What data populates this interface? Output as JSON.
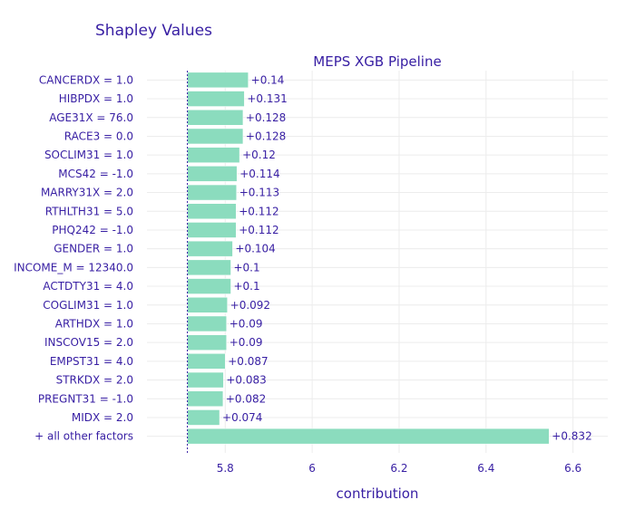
{
  "chart_data": {
    "type": "bar",
    "orientation": "horizontal",
    "title": "Shapley Values",
    "subtitle": "MEPS XGB Pipeline",
    "xlabel": "contribution",
    "baseline": 5.713,
    "xlim": [
      5.62,
      6.68
    ],
    "xticks": [
      5.8,
      6,
      6.2,
      6.4,
      6.6
    ],
    "xtick_labels": [
      "5.8",
      "6",
      "6.2",
      "6.4",
      "6.6"
    ],
    "bar_color": "#8bdcbe",
    "text_color": "#371ea3",
    "grid": true,
    "categories": [
      "CANCERDX = 1.0",
      "HIBPDX = 1.0",
      "AGE31X = 76.0",
      "RACE3 = 0.0",
      "SOCLIM31 = 1.0",
      "MCS42 = -1.0",
      "MARRY31X = 2.0",
      "RTHLTH31 = 5.0",
      "PHQ242 = -1.0",
      "GENDER = 1.0",
      "INCOME_M = 12340.0",
      "ACTDTY31 = 4.0",
      "COGLIM31 = 1.0",
      "ARTHDX = 1.0",
      "INSCOV15 = 2.0",
      "EMPST31 = 4.0",
      "STRKDX = 2.0",
      "PREGNT31 = -1.0",
      "MIDX = 2.0",
      "+ all other factors"
    ],
    "values": [
      0.14,
      0.131,
      0.128,
      0.128,
      0.12,
      0.114,
      0.113,
      0.112,
      0.112,
      0.104,
      0.1,
      0.1,
      0.092,
      0.09,
      0.09,
      0.087,
      0.083,
      0.082,
      0.074,
      0.832
    ],
    "value_labels": [
      "+0.14",
      "+0.131",
      "+0.128",
      "+0.128",
      "+0.12",
      "+0.114",
      "+0.113",
      "+0.112",
      "+0.112",
      "+0.104",
      "+0.1",
      "+0.1",
      "+0.092",
      "+0.09",
      "+0.09",
      "+0.087",
      "+0.083",
      "+0.082",
      "+0.074",
      "+0.832"
    ]
  }
}
